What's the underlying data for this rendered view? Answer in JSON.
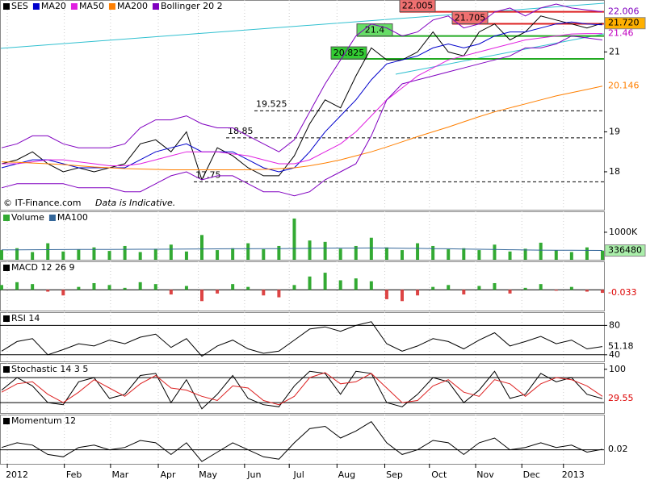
{
  "chart_data": [
    {
      "type": "line",
      "series": [
        {
          "name": "SES",
          "color": "#000000",
          "values": [
            18.2,
            18.3,
            18.5,
            18.2,
            18.0,
            18.1,
            18.0,
            18.1,
            18.2,
            18.7,
            18.8,
            18.5,
            19.0,
            17.8,
            18.6,
            18.4,
            18.1,
            17.9,
            17.9,
            18.4,
            19.2,
            19.8,
            19.6,
            20.4,
            21.1,
            20.8,
            20.8,
            21.0,
            21.5,
            21.0,
            20.9,
            21.5,
            21.7,
            21.3,
            21.5,
            21.9,
            21.8,
            21.7,
            21.6,
            21.72
          ]
        },
        {
          "name": "MA20",
          "color": "#0000cc",
          "values": [
            18.1,
            18.2,
            18.3,
            18.3,
            18.2,
            18.1,
            18.1,
            18.1,
            18.1,
            18.3,
            18.5,
            18.6,
            18.7,
            18.5,
            18.5,
            18.5,
            18.3,
            18.1,
            18.0,
            18.1,
            18.5,
            19.0,
            19.4,
            19.8,
            20.3,
            20.7,
            20.8,
            20.9,
            21.1,
            21.2,
            21.1,
            21.2,
            21.4,
            21.5,
            21.5,
            21.6,
            21.7,
            21.75,
            21.7,
            21.68
          ]
        },
        {
          "name": "MA50",
          "color": "#e020e0",
          "values": [
            18.2,
            18.2,
            18.25,
            18.3,
            18.3,
            18.25,
            18.2,
            18.15,
            18.15,
            18.2,
            18.3,
            18.4,
            18.5,
            18.5,
            18.5,
            18.45,
            18.4,
            18.3,
            18.2,
            18.2,
            18.3,
            18.5,
            18.7,
            19.0,
            19.4,
            19.8,
            20.1,
            20.4,
            20.6,
            20.8,
            20.9,
            21.0,
            21.1,
            21.2,
            21.3,
            21.35,
            21.4,
            21.45,
            21.46,
            21.46
          ]
        },
        {
          "name": "MA200",
          "color": "#ff7f00",
          "values": [
            18.25,
            18.24,
            18.22,
            18.2,
            18.18,
            18.15,
            18.12,
            18.1,
            18.08,
            18.07,
            18.06,
            18.05,
            18.05,
            18.05,
            18.05,
            18.05,
            18.05,
            18.06,
            18.08,
            18.1,
            18.15,
            18.22,
            18.3,
            18.4,
            18.5,
            18.62,
            18.75,
            18.88,
            19.0,
            19.12,
            19.25,
            19.38,
            19.5,
            19.6,
            19.7,
            19.8,
            19.9,
            19.98,
            20.06,
            20.146
          ]
        },
        {
          "name": "Bollinger 20 2",
          "color": "#8000c0",
          "values": [
            18.6,
            18.7,
            18.9,
            18.9,
            18.7,
            18.6,
            18.6,
            18.6,
            18.7,
            19.1,
            19.3,
            19.3,
            19.4,
            19.2,
            19.1,
            19.1,
            18.9,
            18.7,
            18.5,
            18.8,
            19.5,
            20.2,
            20.8,
            21.4,
            21.7,
            21.6,
            21.4,
            21.5,
            21.8,
            21.9,
            21.6,
            21.7,
            22.0,
            22.1,
            21.9,
            22.1,
            22.2,
            22.1,
            22.05,
            22.006
          ],
          "lower": [
            17.6,
            17.7,
            17.7,
            17.7,
            17.7,
            17.6,
            17.6,
            17.6,
            17.5,
            17.5,
            17.7,
            17.9,
            18.0,
            17.8,
            17.9,
            17.9,
            17.7,
            17.5,
            17.5,
            17.4,
            17.5,
            17.8,
            18.0,
            18.2,
            18.9,
            19.8,
            20.2,
            20.3,
            20.4,
            20.5,
            20.6,
            20.7,
            20.8,
            20.9,
            21.1,
            21.1,
            21.2,
            21.4,
            21.35,
            21.3
          ]
        }
      ],
      "ylim": [
        17.05,
        22.3
      ],
      "yticks": [
        18,
        19,
        21
      ],
      "levels": [
        {
          "value": 22.005,
          "color": "#f07070",
          "style": "box"
        },
        {
          "value": 21.705,
          "color": "#f07070",
          "style": "box"
        },
        {
          "value": 21.4,
          "color": "#66dd66",
          "style": "box"
        },
        {
          "value": 20.825,
          "color": "#33cc33",
          "style": "box"
        },
        {
          "value": 19.525,
          "color": "#000000",
          "style": "dashed"
        },
        {
          "value": 18.85,
          "color": "#000000",
          "style": "dashed"
        },
        {
          "value": 17.75,
          "color": "#000000",
          "style": "dashed"
        }
      ],
      "last_labels": [
        {
          "value": 22.006,
          "color": "#8000c0"
        },
        {
          "value": 21.72,
          "label": "21.720",
          "color": "#000000",
          "box": "#ffb000"
        },
        {
          "value": 21.46,
          "color": "#c000c0"
        },
        {
          "value": 20.146,
          "color": "#ff7f00"
        }
      ],
      "watermark": "© IT-Finance.com",
      "note": "Data is Indicative."
    },
    {
      "type": "bar",
      "series": [
        {
          "name": "Volume",
          "color": "#33aa33",
          "values": [
            350000,
            420000,
            280000,
            600000,
            300000,
            380000,
            450000,
            320000,
            500000,
            280000,
            400000,
            550000,
            300000,
            900000,
            350000,
            420000,
            600000,
            380000,
            500000,
            1500000,
            700000,
            650000,
            400000,
            500000,
            800000,
            450000,
            350000,
            600000,
            500000,
            380000,
            420000,
            350000,
            550000,
            300000,
            400000,
            620000,
            350000,
            280000,
            450000,
            330000
          ]
        },
        {
          "name": "MA100",
          "color": "#336699",
          "type": "line",
          "values": [
            360000,
            362000,
            365000,
            368000,
            370000,
            372000,
            375000,
            376000,
            378000,
            380000,
            382000,
            385000,
            388000,
            392000,
            395000,
            398000,
            400000,
            402000,
            405000,
            410000,
            418000,
            422000,
            424000,
            425000,
            428000,
            426000,
            420000,
            414000,
            406000,
            398000,
            390000,
            380000,
            372000,
            364000,
            356000,
            350000,
            346000,
            342000,
            339000,
            336480
          ]
        }
      ],
      "ylim": [
        0,
        1760000
      ],
      "yticks": [
        {
          "value": 1000000,
          "label": "1000K"
        }
      ],
      "last_labels": [
        {
          "value": 336480,
          "color": "#000000",
          "box": "#aaeeaa"
        }
      ]
    },
    {
      "type": "bar",
      "title": "MACD 12 26 9",
      "series": [
        {
          "color": "#33aa33",
          "negative_color": "#dd4444",
          "values": [
            0.05,
            0.08,
            0.06,
            -0.02,
            -0.06,
            0.03,
            0.07,
            0.05,
            0.02,
            0.08,
            0.06,
            -0.05,
            0.04,
            -0.12,
            -0.04,
            0.06,
            0.03,
            -0.06,
            -0.08,
            0.05,
            0.14,
            0.18,
            0.1,
            0.12,
            0.09,
            -0.1,
            -0.12,
            -0.06,
            0.03,
            0.05,
            -0.05,
            0.04,
            0.07,
            -0.04,
            0.02,
            0.06,
            -0.01,
            0.03,
            -0.02,
            -0.033
          ]
        }
      ],
      "ylim": [
        -0.22,
        0.3
      ],
      "hlines": [
        0
      ],
      "last_labels": [
        {
          "value": -0.033,
          "color": "#dd0000"
        }
      ]
    },
    {
      "type": "line",
      "title": "RSI 14",
      "series": [
        {
          "color": "#000000",
          "values": [
            45,
            58,
            62,
            40,
            47,
            55,
            52,
            60,
            55,
            64,
            68,
            50,
            62,
            38,
            52,
            60,
            48,
            42,
            45,
            60,
            75,
            78,
            72,
            80,
            85,
            55,
            45,
            52,
            62,
            58,
            48,
            60,
            70,
            52,
            58,
            65,
            55,
            60,
            48,
            51.18
          ]
        }
      ],
      "ylim": [
        31,
        98
      ],
      "yticks": [
        40,
        80
      ],
      "grid": true,
      "last_labels": [
        {
          "value": 51.18,
          "color": "#000000"
        }
      ]
    },
    {
      "type": "line",
      "title": "Stochastic 14 3 5",
      "series": [
        {
          "color": "#000000",
          "values": [
            50,
            80,
            60,
            20,
            15,
            70,
            80,
            30,
            40,
            85,
            90,
            20,
            75,
            5,
            40,
            85,
            30,
            15,
            10,
            60,
            95,
            90,
            40,
            95,
            90,
            20,
            10,
            40,
            80,
            70,
            20,
            50,
            95,
            30,
            40,
            90,
            70,
            80,
            40,
            29.55
          ]
        },
        {
          "color": "#dd2222",
          "values": [
            45,
            65,
            70,
            40,
            20,
            45,
            75,
            55,
            35,
            65,
            85,
            55,
            50,
            35,
            25,
            60,
            55,
            25,
            15,
            35,
            80,
            92,
            65,
            70,
            90,
            55,
            20,
            25,
            60,
            75,
            45,
            35,
            75,
            65,
            35,
            65,
            80,
            75,
            60,
            35
          ]
        }
      ],
      "ylim": [
        -5,
        115
      ],
      "yticks": [
        100
      ],
      "hlines": [
        20,
        80
      ],
      "last_labels": [
        {
          "value": 29.55,
          "color": "#dd0000"
        }
      ]
    },
    {
      "type": "line",
      "title": "Momentum 12",
      "series": [
        {
          "color": "#000000",
          "values": [
            0.1,
            0.3,
            0.2,
            -0.2,
            -0.3,
            0.1,
            0.2,
            0.0,
            0.1,
            0.4,
            0.3,
            -0.2,
            0.3,
            -0.5,
            -0.1,
            0.3,
            0.0,
            -0.3,
            -0.4,
            0.3,
            0.9,
            1.0,
            0.5,
            0.8,
            1.2,
            0.3,
            -0.2,
            0.0,
            0.4,
            0.3,
            -0.2,
            0.3,
            0.5,
            0.0,
            0.1,
            0.3,
            0.1,
            0.2,
            -0.1,
            0.02
          ]
        }
      ],
      "ylim": [
        -0.6,
        1.5
      ],
      "hlines": [
        0
      ],
      "last_labels": [
        {
          "value": 0.02,
          "color": "#000000"
        }
      ],
      "xticks": [
        {
          "value": 1.0,
          "label": "2012"
        },
        {
          "value": 4.7,
          "label": "Feb"
        },
        {
          "value": 7.7,
          "label": "Mar"
        },
        {
          "value": 10.8,
          "label": "Apr"
        },
        {
          "value": 13.4,
          "label": "May"
        },
        {
          "value": 16.4,
          "label": "Jun"
        },
        {
          "value": 19.3,
          "label": "Jul"
        },
        {
          "value": 22.4,
          "label": "Aug"
        },
        {
          "value": 25.5,
          "label": "Sep"
        },
        {
          "value": 28.4,
          "label": "Oct"
        },
        {
          "value": 31.4,
          "label": "Nov"
        },
        {
          "value": 34.4,
          "label": "Dec"
        },
        {
          "value": 37.1,
          "label": "2013"
        }
      ]
    }
  ]
}
